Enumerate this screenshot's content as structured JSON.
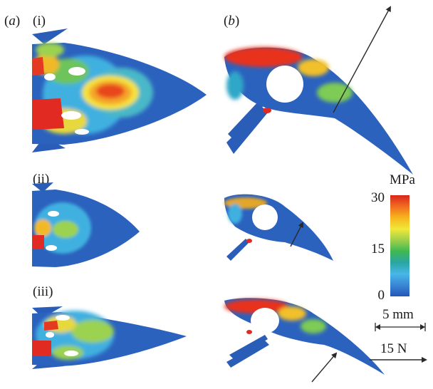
{
  "panels": {
    "a": {
      "letter": "a"
    },
    "b": {
      "letter": "b"
    }
  },
  "row_labels": [
    "(i)",
    "(ii)",
    "(iii)"
  ],
  "colorbar": {
    "unit": "MPa",
    "ticks": [
      "30",
      "15",
      "0"
    ],
    "colors": [
      "#d7261b",
      "#f26b21",
      "#f7b51d",
      "#f1e83a",
      "#9ed04a",
      "#3fb852",
      "#2aa6a3",
      "#47b7e8",
      "#3a86d4",
      "#2456b8"
    ]
  },
  "scale_bar": {
    "label": "5 mm"
  },
  "force_bar": {
    "label": "15 N"
  }
}
